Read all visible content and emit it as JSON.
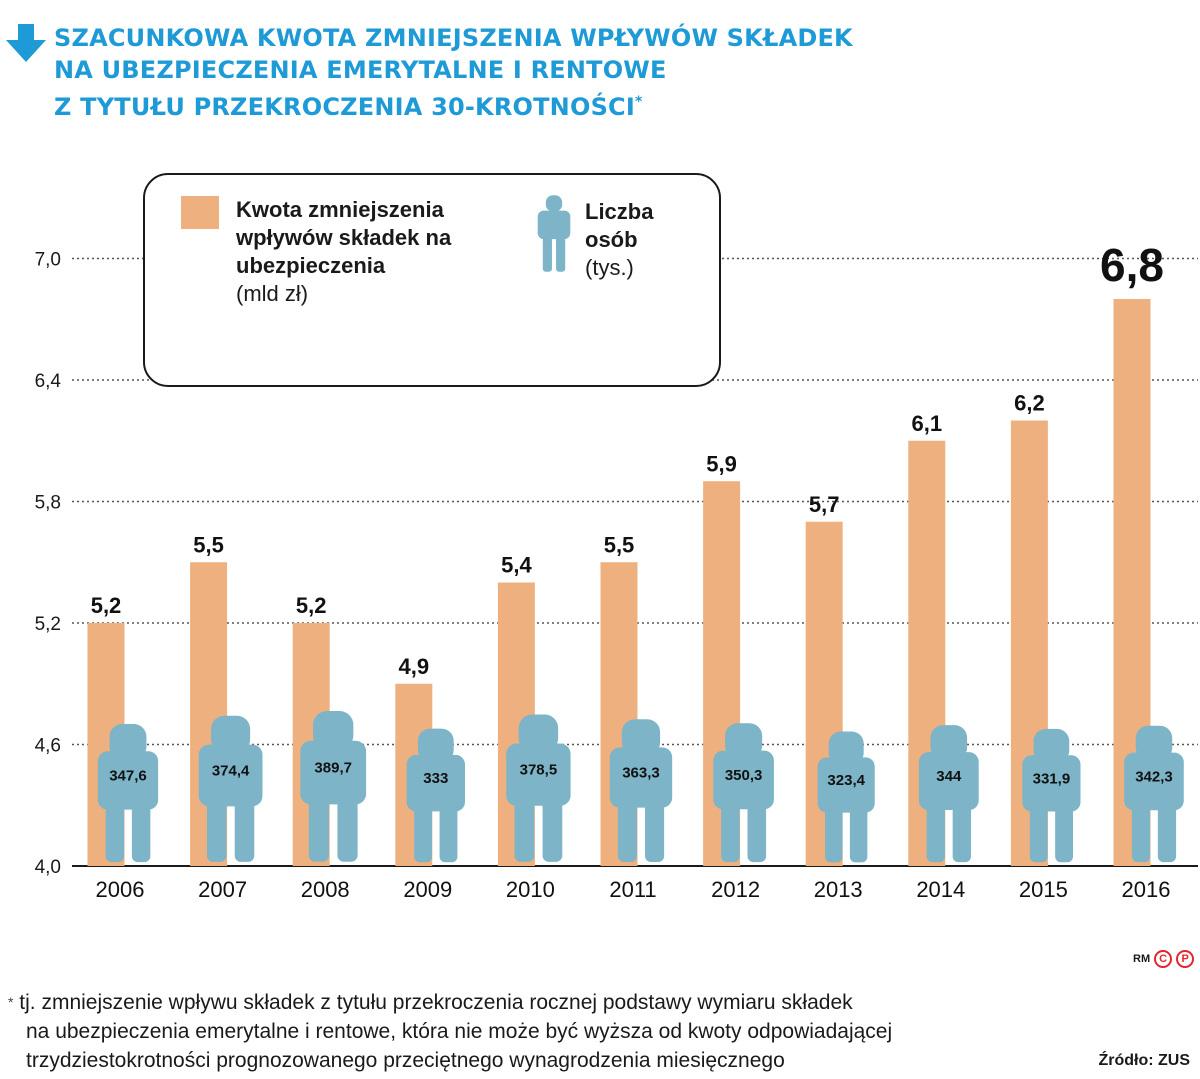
{
  "title": {
    "line1": "SZACUNKOWA KWOTA ZMNIEJSZENIA WPŁYWÓW SKŁADEK",
    "line2": "NA UBEZPIECZENIA EMERYTALNE I RENTOWE",
    "line3": "Z TYTUŁU PRZEKROCZENIA 30-KROTNOŚCI",
    "asterisk": "*"
  },
  "legend": {
    "kwota_label": "Kwota zmniejszenia wpływów składek na ubezpieczenia",
    "kwota_unit": "(mld zł)",
    "liczba_label": "Liczba osób",
    "liczba_unit": "(tys.)"
  },
  "colors": {
    "accent_blue": "#1e9ad6",
    "bar": "#eeb07f",
    "person": "#7db4c8",
    "logo_red": "#e3262f"
  },
  "icons": [
    "down-arrow-icon",
    "person-icon"
  ],
  "chart_data": {
    "type": "bar",
    "categories": [
      "2006",
      "2007",
      "2008",
      "2009",
      "2010",
      "2011",
      "2012",
      "2013",
      "2014",
      "2015",
      "2016"
    ],
    "series": [
      {
        "name": "Kwota zmniejszenia wpływów składek na ubezpieczenia",
        "values": [
          5.2,
          5.5,
          5.2,
          4.9,
          5.4,
          5.5,
          5.9,
          5.7,
          6.1,
          6.2,
          6.8
        ],
        "labels": [
          "5,2",
          "5,5",
          "5,2",
          "4,9",
          "5,4",
          "5,5",
          "5,9",
          "5,7",
          "6,1",
          "6,2",
          "6,8"
        ]
      },
      {
        "name": "Liczba osób",
        "values": [
          347.6,
          374.4,
          389.7,
          333,
          378.5,
          363.3,
          350.3,
          323.4,
          344,
          331.9,
          342.3
        ],
        "labels": [
          "347,6",
          "374,4",
          "389,7",
          "333",
          "378,5",
          "363,3",
          "350,3",
          "323,4",
          "344",
          "331,9",
          "342,3"
        ]
      }
    ],
    "yticks": [
      "4,0",
      "4,6",
      "5,2",
      "5,8",
      "6,4",
      "7,0"
    ],
    "ylim": [
      4.0,
      7.0
    ],
    "grid": true,
    "legend_position": "top-left"
  },
  "footnote": {
    "star": "*",
    "line1": "tj. zmniejszenie wpływu składek z tytułu przekroczenia rocznej podstawy wymiaru składek",
    "line2": "na ubezpieczenia emerytalne i rentowe, która nie może być wyższa od kwoty odpowiadającej",
    "line3": "trzydziestokrotności prognozowanego przeciętnego wynagrodzenia miesięcznego"
  },
  "source": "Źródło: ZUS",
  "logo": {
    "text": "RM",
    "c": "C",
    "p": "P"
  }
}
